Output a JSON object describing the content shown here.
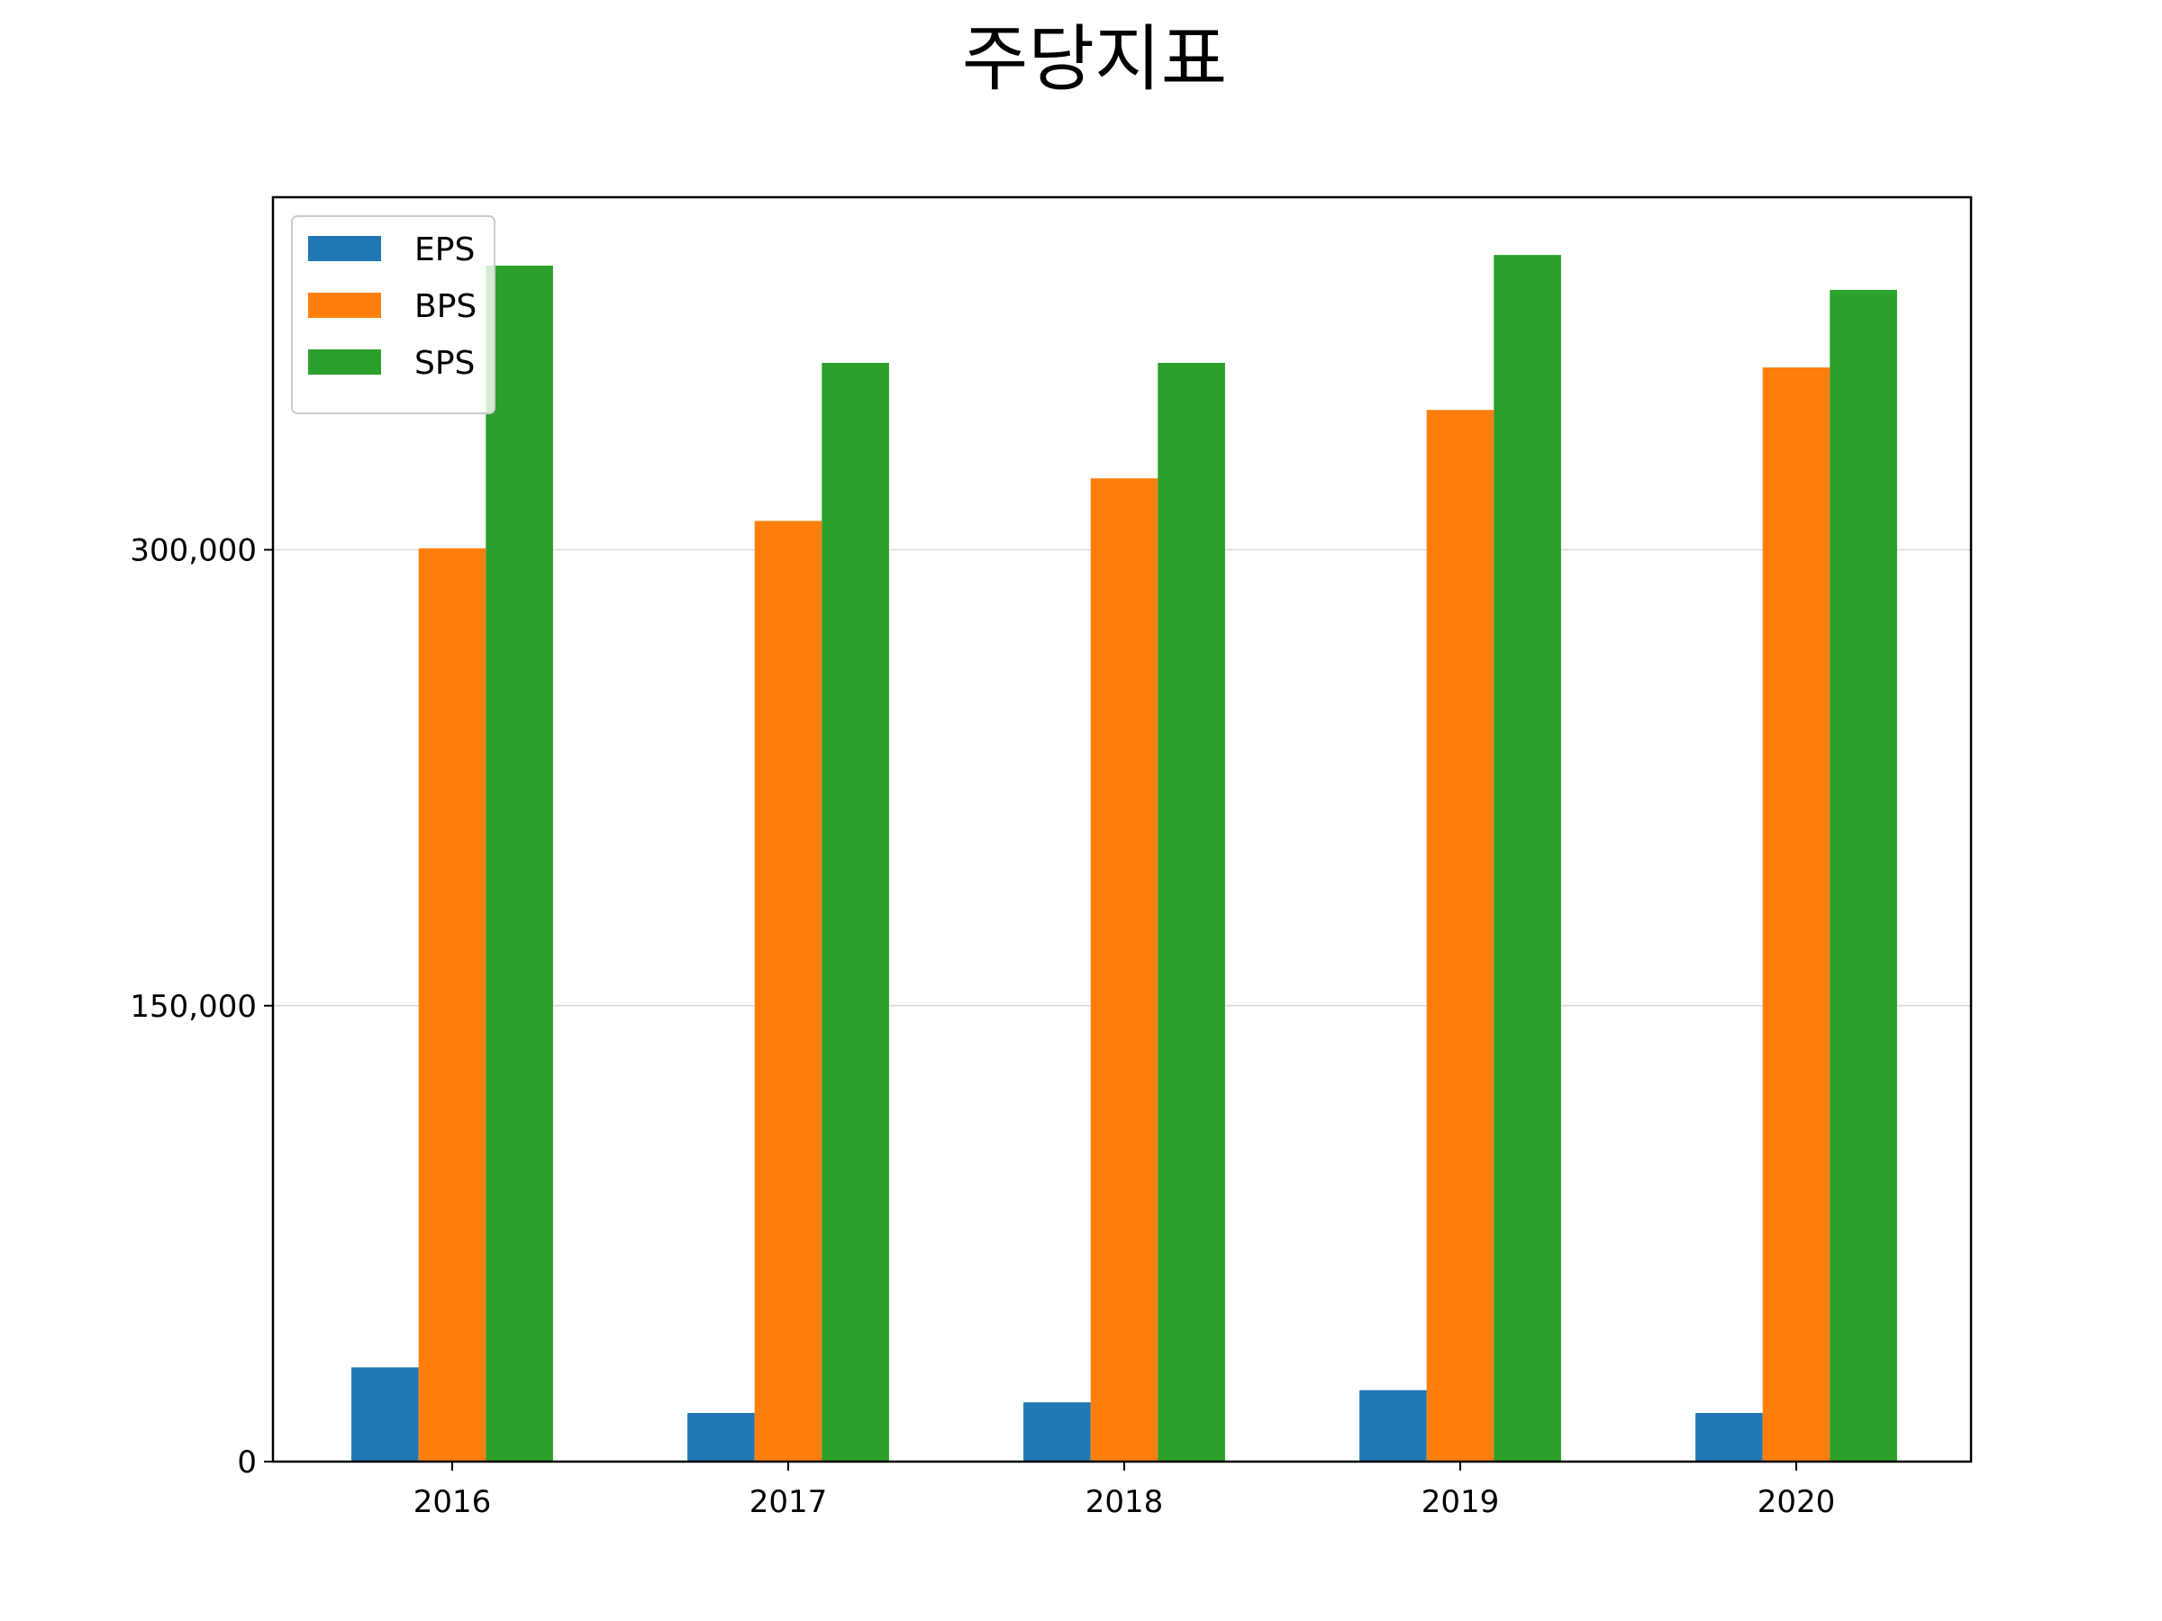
{
  "chart_data": {
    "type": "bar",
    "title": "주당지표",
    "xlabel": "",
    "ylabel": "",
    "categories": [
      "2016",
      "2017",
      "2018",
      "2019",
      "2020"
    ],
    "series": [
      {
        "name": "EPS",
        "color": "#1f77b4",
        "values": [
          31000,
          16000,
          19500,
          23500,
          16000
        ]
      },
      {
        "name": "BPS",
        "color": "#ff7f0e",
        "values": [
          300500,
          309500,
          323500,
          346000,
          360000
        ]
      },
      {
        "name": "SPS",
        "color": "#2ca02c",
        "values": [
          393500,
          361500,
          361500,
          397000,
          385500
        ]
      }
    ],
    "yticks": [
      {
        "value": 0,
        "label": "0"
      },
      {
        "value": 150000,
        "label": "150,000"
      },
      {
        "value": 300000,
        "label": "300,000"
      }
    ],
    "ylim": [
      0,
      416000
    ],
    "grid": {
      "y": true,
      "color": "#d9d9d9"
    },
    "legend": {
      "placement": "top-left"
    }
  }
}
